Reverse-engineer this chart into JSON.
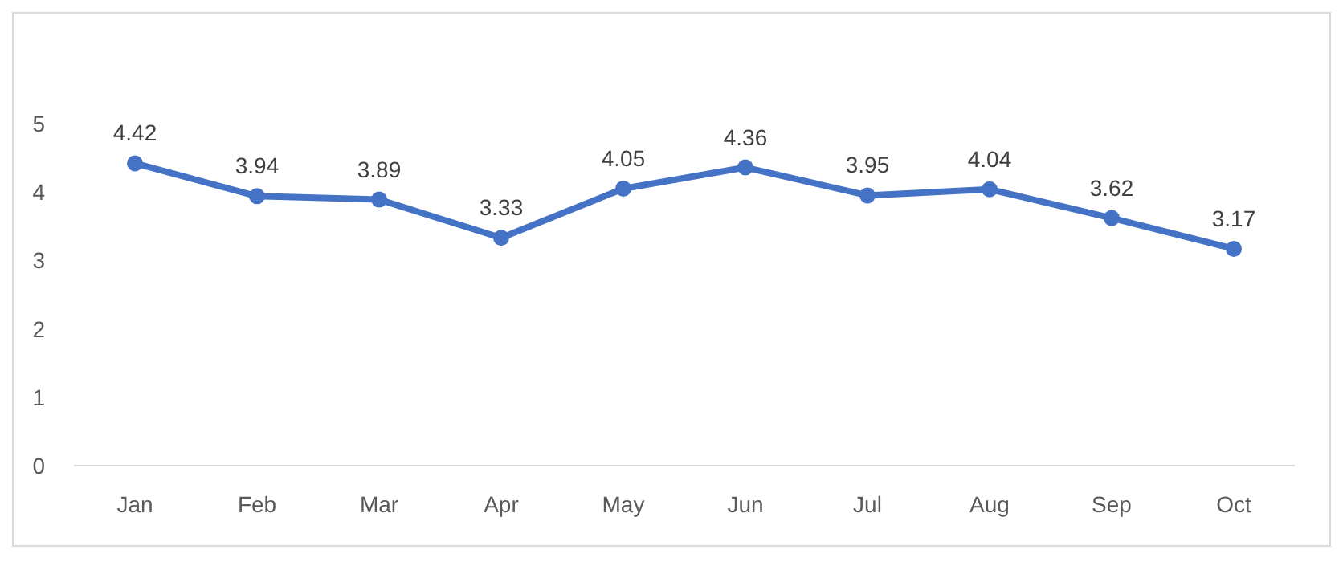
{
  "chart_data": {
    "type": "line",
    "categories": [
      "Jan",
      "Feb",
      "Mar",
      "Apr",
      "May",
      "Jun",
      "Jul",
      "Aug",
      "Sep",
      "Oct"
    ],
    "series": [
      {
        "color": "#4472c4",
        "values": [
          4.42,
          3.94,
          3.89,
          3.33,
          4.05,
          4.36,
          3.95,
          4.04,
          3.62,
          3.17
        ]
      }
    ],
    "ylim": [
      0,
      5
    ],
    "yticks": [
      0,
      1,
      2,
      3,
      4,
      5
    ],
    "grid": false,
    "marker": "circle",
    "line_style": "solid",
    "data_labels": true
  }
}
